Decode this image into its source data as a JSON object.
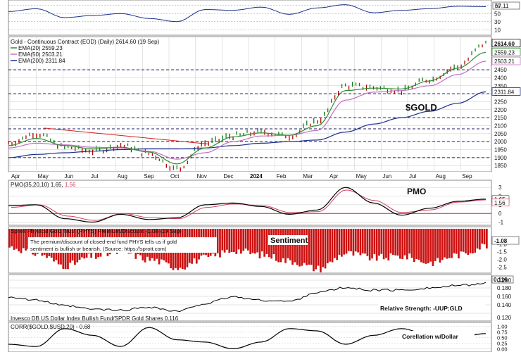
{
  "colors": {
    "bg": "#ffffff",
    "grid": "#c8c8c8",
    "dash": "#1a1a66",
    "price_bar_up": "#1a7a1a",
    "price_bar_down": "#b00000",
    "ema20": "#2e8b2e",
    "ema50": "#c071c0",
    "ema200": "#1a2f8a",
    "trend": "#d02020",
    "pmo": "#000000",
    "pmo_signal": "#d04060",
    "zero_line": "#d02020",
    "sentiment": "#cc1111",
    "panel_bg": "#ffffff",
    "label_bg": "#ffffff"
  },
  "rsi_panel": {
    "ticks": [
      "67.11",
      "70",
      "50",
      "30",
      "10"
    ],
    "last": "67.11"
  },
  "price_panel": {
    "title": "Gold - Continuous Contract (EOD) (Daily) 2614.60 (19 Sep)",
    "legend": [
      {
        "label": "EMA(20) 2559.23",
        "color_key": "ema20"
      },
      {
        "label": "EMA(50) 2503.21",
        "color_key": "ema50"
      },
      {
        "label": "EMA(200) 2311.84",
        "color_key": "ema200"
      }
    ],
    "annotation": "$GOLD",
    "y_ticks": [
      "2450",
      "2400",
      "2350",
      "2300",
      "2250",
      "2200",
      "2150",
      "2100",
      "2050",
      "2000",
      "1950",
      "1900",
      "1850"
    ],
    "right_badges": [
      "2614.60",
      "2559.23",
      "2503.21",
      "2311.84"
    ],
    "x_labels": [
      "Apr",
      "May",
      "Jun",
      "Jul",
      "Aug",
      "Sep",
      "Oct",
      "Nov",
      "Dec",
      "2024",
      "Feb",
      "Mar",
      "Apr",
      "May",
      "Jun",
      "Jul",
      "Aug",
      "Sep"
    ],
    "support_levels": [
      2450,
      2300,
      2150,
      2080,
      2000,
      1900
    ]
  },
  "pmo_panel": {
    "title": "PMO(35,20,10) 1.65, 1.56",
    "title_parts": [
      "PMO(35,20,10) 1.65, ",
      "1.56"
    ],
    "annotation": "PMO",
    "y_ticks": [
      "3",
      "2",
      "1",
      "0",
      "-1"
    ],
    "badges": [
      "1.65",
      "1.56"
    ]
  },
  "sentiment_panel": {
    "title": "Sprott Physical Gold Trust (PHYS) Premium/Discount -1.08 (19 Sep)",
    "note_lines": [
      "The premium/discount of closed-end fund PHYS tells us if gold",
      "sentiment is bullish or bearish. (Source: https://sprott.com)"
    ],
    "annotation": "Sentiment",
    "y_ticks": [
      "-1.0",
      "-1.5",
      "-2.0",
      "-2.5"
    ],
    "badge": "-1.08"
  },
  "rs_panel": {
    "annotation": "Relative Strength: -UUP:GLD",
    "y_ticks": [
      "0.120",
      "0.140",
      "0.160",
      "0.180",
      "0.200"
    ],
    "badge": "0.116",
    "footer": "Invesco DB US Dollar Index Bullish Fund/SPDR Gold Shares 0.116"
  },
  "corr_panel": {
    "title": "CORR($GOLD,$USD,20) - 0.68",
    "annotation": "Corellation w/Dollar",
    "y_ticks": [
      "1.00",
      "0.75",
      "0.50",
      "0.25",
      "0.00"
    ]
  },
  "chart_data": [
    {
      "type": "line",
      "name": "RSI panel",
      "y_ticks": [
        70,
        50,
        30,
        10
      ],
      "last": 67.11
    },
    {
      "type": "line",
      "name": "Gold - Continuous Contract (EOD) (Daily)",
      "title": "Gold - Continuous Contract (EOD) (Daily) 2614.60 (19 Sep)",
      "x": [
        "Apr",
        "May",
        "Jun",
        "Jul",
        "Aug",
        "Sep",
        "Oct",
        "Nov",
        "Dec",
        "2024",
        "Feb",
        "Mar",
        "Apr",
        "May",
        "Jun",
        "Jul",
        "Aug",
        "Sep"
      ],
      "ylim": [
        1820,
        2640
      ],
      "series": [
        {
          "name": "Gold",
          "values": [
            1990,
            2050,
            1965,
            1940,
            1975,
            1925,
            1830,
            1990,
            2035,
            2060,
            2035,
            2130,
            2350,
            2340,
            2320,
            2390,
            2470,
            2614.6
          ]
        },
        {
          "name": "EMA(20) 2559.23",
          "values": [
            1975,
            2020,
            1975,
            1955,
            1965,
            1935,
            1860,
            1960,
            2030,
            2055,
            2040,
            2100,
            2320,
            2335,
            2330,
            2380,
            2460,
            2559.23
          ]
        },
        {
          "name": "EMA(50) 2503.21",
          "values": [
            1960,
            1990,
            1980,
            1965,
            1960,
            1940,
            1890,
            1930,
            2000,
            2035,
            2040,
            2070,
            2260,
            2310,
            2320,
            2350,
            2420,
            2503.21
          ]
        },
        {
          "name": "EMA(200) 2311.84",
          "values": [
            1900,
            1920,
            1930,
            1940,
            1950,
            1955,
            1955,
            1960,
            1975,
            1990,
            2000,
            2010,
            2060,
            2110,
            2150,
            2190,
            2240,
            2311.84
          ]
        }
      ],
      "support_levels": [
        2450,
        2300,
        2150,
        2080,
        2000,
        1900
      ]
    },
    {
      "type": "line",
      "name": "PMO(35,20,10)",
      "ylim": [
        -1.2,
        3.5
      ],
      "series": [
        {
          "name": "PMO",
          "values": [
            0.9,
            1.0,
            -0.6,
            -1.0,
            -0.1,
            -0.7,
            -0.5,
            1.0,
            1.2,
            0.8,
            -0.1,
            0.4,
            3.0,
            1.2,
            -0.2,
            0.6,
            1.4,
            1.65
          ]
        },
        {
          "name": "Signal",
          "values": [
            0.7,
            1.0,
            -0.3,
            -0.8,
            0.0,
            -0.5,
            -0.6,
            0.7,
            1.1,
            0.9,
            0.1,
            0.2,
            2.7,
            1.5,
            0.1,
            0.4,
            1.3,
            1.56
          ]
        }
      ]
    },
    {
      "type": "bar",
      "name": "Sprott Physical Gold Trust (PHYS) Premium/Discount",
      "ylim": [
        -2.8,
        0
      ],
      "values": [
        -1.2,
        -1.6,
        -2.4,
        -1.8,
        -1.5,
        -2.0,
        -2.5,
        -1.9,
        -1.4,
        -1.7,
        -2.1,
        -2.6,
        -1.6,
        -1.9,
        -1.8,
        -2.2,
        -1.7,
        -1.08
      ]
    },
    {
      "type": "line",
      "name": "Relative Strength: -UUP:GLD",
      "ylim": [
        0.085,
        0.122
      ],
      "values": [
        0.104,
        0.101,
        0.096,
        0.093,
        0.092,
        0.095,
        0.091,
        0.098,
        0.104,
        0.101,
        0.1,
        0.108,
        0.112,
        0.11,
        0.11,
        0.112,
        0.114,
        0.116
      ]
    },
    {
      "type": "line",
      "name": "CORR($GOLD,$USD,20)",
      "ylim": [
        -0.05,
        1.05
      ],
      "values": [
        0.2,
        0.1,
        0.9,
        0.6,
        0.1,
        0.95,
        0.4,
        0.3,
        0.0,
        0.3,
        0.9,
        0.8,
        0.2,
        0.6,
        0.9,
        0.6,
        0.5,
        0.68
      ]
    }
  ]
}
